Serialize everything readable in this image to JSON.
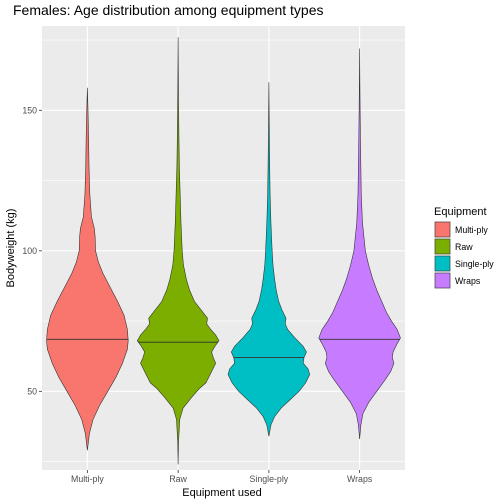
{
  "chart_data": {
    "type": "violin",
    "title": "Females: Age distribution among equipment types",
    "xlabel": "Equipment used",
    "ylabel": "Bodyweight (kg)",
    "categories": [
      "Multi-ply",
      "Raw",
      "Single-ply",
      "Wraps"
    ],
    "ylim": [
      22,
      180
    ],
    "yticks": [
      50,
      100,
      150
    ],
    "grid": true,
    "legend": {
      "title": "Equipment",
      "position": "right",
      "entries": [
        "Multi-ply",
        "Raw",
        "Single-ply",
        "Wraps"
      ]
    },
    "series": [
      {
        "name": "Multi-ply",
        "color": "#F8766D",
        "min": 29,
        "max": 158,
        "median": 68.5,
        "density": [
          [
            29,
            0.0
          ],
          [
            35,
            0.05
          ],
          [
            40,
            0.14
          ],
          [
            45,
            0.3
          ],
          [
            50,
            0.5
          ],
          [
            55,
            0.7
          ],
          [
            60,
            0.86
          ],
          [
            65,
            0.98
          ],
          [
            68,
            1.0
          ],
          [
            72,
            0.98
          ],
          [
            77,
            0.9
          ],
          [
            82,
            0.74
          ],
          [
            87,
            0.56
          ],
          [
            92,
            0.38
          ],
          [
            96,
            0.27
          ],
          [
            100,
            0.2
          ],
          [
            105,
            0.19
          ],
          [
            108,
            0.17
          ],
          [
            112,
            0.1
          ],
          [
            120,
            0.06
          ],
          [
            130,
            0.04
          ],
          [
            140,
            0.03
          ],
          [
            150,
            0.015
          ],
          [
            158,
            0.0
          ]
        ]
      },
      {
        "name": "Raw",
        "color": "#7CAE00",
        "min": 24,
        "max": 176,
        "median": 67.5,
        "density": [
          [
            24,
            0.0
          ],
          [
            32,
            0.01
          ],
          [
            40,
            0.04
          ],
          [
            44,
            0.12
          ],
          [
            48,
            0.34
          ],
          [
            51,
            0.52
          ],
          [
            53,
            0.68
          ],
          [
            57,
            0.82
          ],
          [
            60,
            0.92
          ],
          [
            62,
            0.86
          ],
          [
            64,
            0.82
          ],
          [
            66,
            0.9
          ],
          [
            68,
            1.0
          ],
          [
            70,
            0.92
          ],
          [
            72,
            0.8
          ],
          [
            74,
            0.7
          ],
          [
            76,
            0.72
          ],
          [
            79,
            0.56
          ],
          [
            82,
            0.4
          ],
          [
            86,
            0.28
          ],
          [
            90,
            0.2
          ],
          [
            95,
            0.13
          ],
          [
            100,
            0.1
          ],
          [
            110,
            0.07
          ],
          [
            120,
            0.05
          ],
          [
            130,
            0.03
          ],
          [
            140,
            0.02
          ],
          [
            150,
            0.012
          ],
          [
            160,
            0.007
          ],
          [
            176,
            0.0
          ]
        ]
      },
      {
        "name": "Single-ply",
        "color": "#00BFC4",
        "min": 34,
        "max": 160,
        "median": 62,
        "density": [
          [
            34,
            0.0
          ],
          [
            38,
            0.05
          ],
          [
            41,
            0.14
          ],
          [
            44,
            0.3
          ],
          [
            47,
            0.52
          ],
          [
            50,
            0.74
          ],
          [
            53,
            0.9
          ],
          [
            56,
            1.0
          ],
          [
            58,
            0.96
          ],
          [
            60,
            0.84
          ],
          [
            62,
            0.86
          ],
          [
            64,
            0.92
          ],
          [
            66,
            0.84
          ],
          [
            69,
            0.64
          ],
          [
            72,
            0.46
          ],
          [
            74,
            0.4
          ],
          [
            76,
            0.42
          ],
          [
            79,
            0.32
          ],
          [
            82,
            0.24
          ],
          [
            86,
            0.18
          ],
          [
            90,
            0.14
          ],
          [
            95,
            0.1
          ],
          [
            100,
            0.08
          ],
          [
            110,
            0.05
          ],
          [
            120,
            0.03
          ],
          [
            130,
            0.02
          ],
          [
            140,
            0.012
          ],
          [
            150,
            0.006
          ],
          [
            160,
            0.0
          ]
        ]
      },
      {
        "name": "Wraps",
        "color": "#C77CFF",
        "min": 33,
        "max": 172,
        "median": 68.5,
        "density": [
          [
            33,
            0.0
          ],
          [
            38,
            0.03
          ],
          [
            42,
            0.08
          ],
          [
            46,
            0.22
          ],
          [
            50,
            0.42
          ],
          [
            54,
            0.62
          ],
          [
            57,
            0.76
          ],
          [
            60,
            0.84
          ],
          [
            62,
            0.8
          ],
          [
            64,
            0.82
          ],
          [
            67,
            0.92
          ],
          [
            69,
            1.0
          ],
          [
            72,
            0.92
          ],
          [
            75,
            0.78
          ],
          [
            78,
            0.66
          ],
          [
            82,
            0.54
          ],
          [
            86,
            0.42
          ],
          [
            90,
            0.32
          ],
          [
            95,
            0.22
          ],
          [
            100,
            0.14
          ],
          [
            110,
            0.07
          ],
          [
            120,
            0.04
          ],
          [
            130,
            0.03
          ],
          [
            140,
            0.02
          ],
          [
            150,
            0.012
          ],
          [
            160,
            0.006
          ],
          [
            172,
            0.0
          ]
        ]
      }
    ]
  }
}
